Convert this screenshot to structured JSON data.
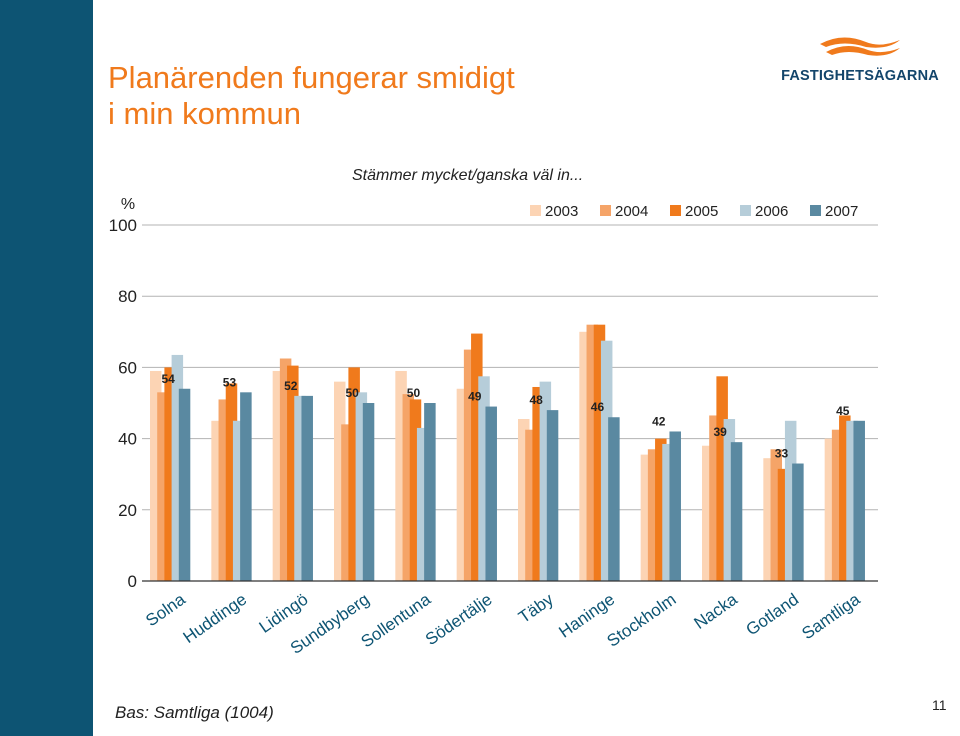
{
  "slide": {
    "title_line1": "Planärenden fungerar smidigt",
    "title_line2": "i min kommun",
    "footer": "Bas: Samtliga (1004)",
    "page_number": "11"
  },
  "logo": {
    "text": "FASTIGHETSÄGARNA",
    "icon": "wave-logo-icon"
  },
  "colors": {
    "title": "#f07a1c",
    "sidebar_dark": "#0d5473",
    "sidebar_light": "#c5d6e1",
    "s2003": "#fcd4b4",
    "s2004": "#f5a468",
    "s2005": "#f07a1c",
    "s2006": "#b6cdd9",
    "s2007": "#5a89a1"
  },
  "chart_data": {
    "type": "bar",
    "title": "Stämmer mycket/ganska väl in...",
    "ylabel": "%",
    "ylim": [
      0,
      100
    ],
    "yticks": [
      0,
      20,
      40,
      60,
      80,
      100
    ],
    "categories": [
      "Solna",
      "Huddinge",
      "Lidingö",
      "Sundbyberg",
      "Sollentuna",
      "Södertälje",
      "Täby",
      "Haninge",
      "Stockholm",
      "Nacka",
      "Gotland",
      "Samtliga"
    ],
    "series": [
      {
        "name": "2003",
        "values": [
          59,
          45,
          59,
          56,
          59,
          54,
          45.5,
          70,
          35.5,
          38,
          34.5,
          40
        ]
      },
      {
        "name": "2004",
        "values": [
          53,
          51,
          62.5,
          44,
          52.5,
          65,
          42.5,
          72,
          37,
          46.5,
          37,
          42.5
        ]
      },
      {
        "name": "2005",
        "values": [
          60,
          55.5,
          60.5,
          60,
          51,
          69.5,
          54.5,
          72,
          40,
          57.5,
          31.5,
          46.5
        ]
      },
      {
        "name": "2006",
        "values": [
          63.5,
          45,
          52,
          53,
          43,
          57.5,
          56,
          67.5,
          38.5,
          45.5,
          45,
          45
        ]
      },
      {
        "name": "2007",
        "values": [
          54,
          53,
          52,
          50,
          50,
          49,
          48,
          46,
          42,
          39,
          33,
          45
        ]
      }
    ],
    "data_labels": [
      "54",
      "53",
      "52",
      "50",
      "50",
      "49",
      "48",
      "46",
      "42",
      "39",
      "33",
      "45"
    ],
    "legend": [
      "2003",
      "2004",
      "2005",
      "2006",
      "2007"
    ],
    "legend_position": "top-right",
    "grid": true
  }
}
